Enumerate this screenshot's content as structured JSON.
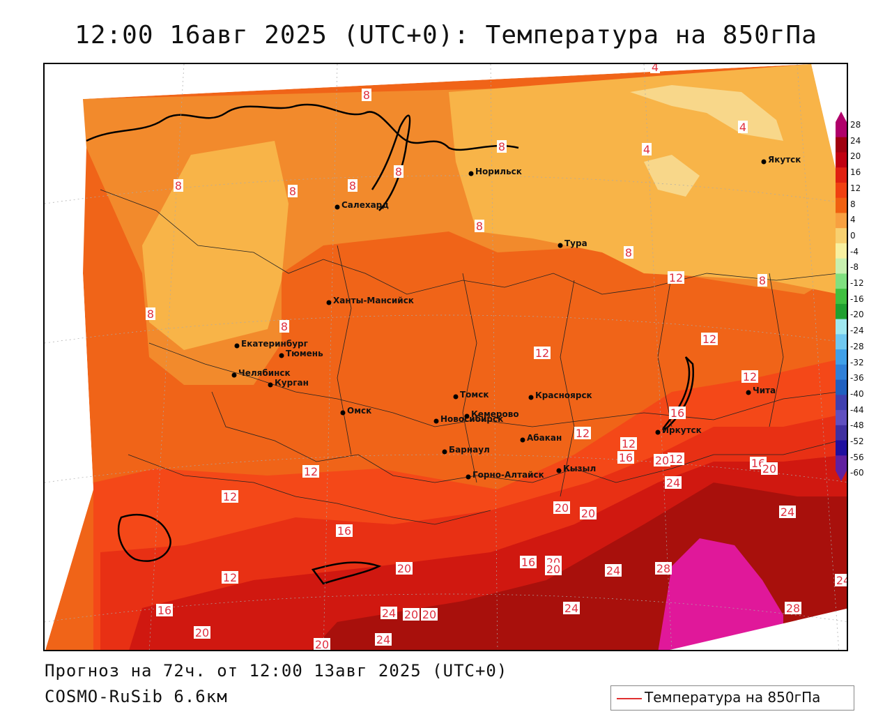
{
  "title": "12:00 16авг 2025 (UTC+0): Температура на 850гПа",
  "footer": {
    "forecast": "Прогноз на 72ч. от 12:00 13авг 2025 (UTC+0)",
    "model": "COSMO-RuSib 6.6км"
  },
  "legend": {
    "label": "Температура на 850гПа",
    "line_color": "#e03030"
  },
  "colorbar": {
    "ticks": [
      "28",
      "24",
      "20",
      "16",
      "12",
      "8",
      "4",
      "0",
      "-4",
      "-8",
      "-12",
      "-16",
      "-20",
      "-24",
      "-28",
      "-32",
      "-36",
      "-40",
      "-44",
      "-48",
      "-52",
      "-56",
      "-60"
    ],
    "colors": [
      "#b0006a",
      "#a00010",
      "#c00010",
      "#e02010",
      "#f04010",
      "#f06010",
      "#f8a040",
      "#f8d070",
      "#f8f0a0",
      "#c8f0b0",
      "#80e080",
      "#40c040",
      "#20a030",
      "#a0e8f0",
      "#70c8f0",
      "#40a0e8",
      "#3080d8",
      "#2060c0",
      "#4040b0",
      "#6050c0",
      "#4030a0",
      "#2010a0",
      "#6020a0"
    ]
  },
  "cities": [
    {
      "name": "Якутск"
    },
    {
      "name": "Норильск"
    },
    {
      "name": "Салехард"
    },
    {
      "name": "Тура"
    },
    {
      "name": "Ханты-Мансийск"
    },
    {
      "name": "Екатеринбург"
    },
    {
      "name": "Тюмень"
    },
    {
      "name": "Челябинск"
    },
    {
      "name": "Курган"
    },
    {
      "name": "Омск"
    },
    {
      "name": "Новосибирск"
    },
    {
      "name": "Томск"
    },
    {
      "name": "Кемерово"
    },
    {
      "name": "Красноярск"
    },
    {
      "name": "Барнаул"
    },
    {
      "name": "Абакан"
    },
    {
      "name": "Иркутск"
    },
    {
      "name": "Чита"
    },
    {
      "name": "Горно-Алтайск"
    },
    {
      "name": "Кызыл"
    }
  ],
  "isotherm_labels": [
    "4",
    "4",
    "4",
    "8",
    "8",
    "8",
    "8",
    "8",
    "8",
    "8",
    "8",
    "8",
    "8",
    "8",
    "12",
    "12",
    "12",
    "12",
    "12",
    "12",
    "12",
    "12",
    "12",
    "12",
    "16",
    "16",
    "16",
    "16",
    "16",
    "16",
    "20",
    "20",
    "20",
    "20",
    "20",
    "20",
    "20",
    "20",
    "20",
    "20",
    "20",
    "24",
    "24",
    "24",
    "24",
    "24",
    "24",
    "28",
    "28",
    "24"
  ]
}
